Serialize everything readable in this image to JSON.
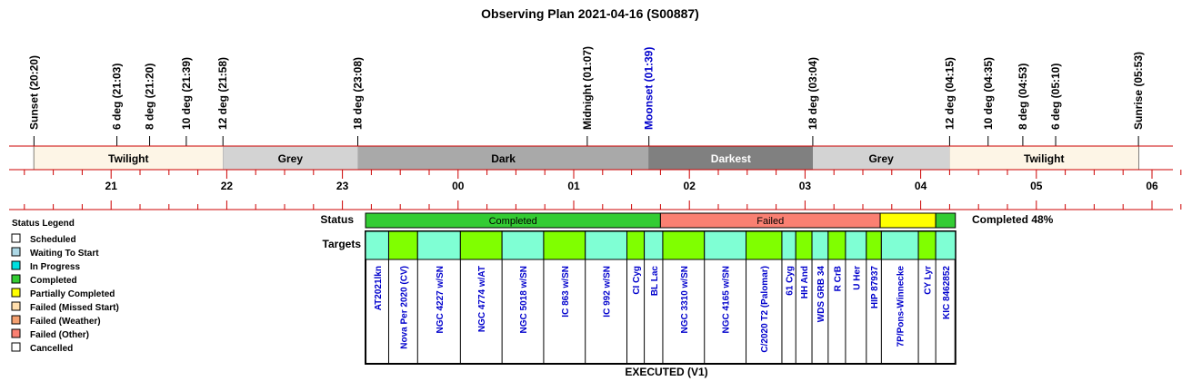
{
  "title": "Observing Plan 2021-04-16 (S00887)",
  "colors": {
    "twilight": "#fdf5e6",
    "grey": "#d3d3d3",
    "dark": "#a9a9a9",
    "darkest": "#808080",
    "red_line": "#cc0000",
    "moonset": "#0000cc",
    "target_text": "#0000cc",
    "completed": "#33cc33",
    "waiting": "#7fffd4",
    "green_target": "#80ff00",
    "failed": "#fa8072",
    "partial": "#ffff00",
    "in_progress": "#00e0e0"
  },
  "chart_data": {
    "type": "timeline",
    "x_unit": "hours from 20:00",
    "xlim": [
      -0.3,
      10.3
    ],
    "hour_ticks": [
      {
        "label": "21",
        "value": 1
      },
      {
        "label": "22",
        "value": 2
      },
      {
        "label": "23",
        "value": 3
      },
      {
        "label": "00",
        "value": 4
      },
      {
        "label": "01",
        "value": 5
      },
      {
        "label": "02",
        "value": 6
      },
      {
        "label": "03",
        "value": 7
      },
      {
        "label": "04",
        "value": 8
      },
      {
        "label": "05",
        "value": 9
      },
      {
        "label": "06",
        "value": 10
      }
    ],
    "events": [
      {
        "label": "Sunset (20:20)",
        "time": 0.333,
        "color": "#000000"
      },
      {
        "label": "6 deg (21:03)",
        "time": 1.05,
        "color": "#000000"
      },
      {
        "label": "8 deg (21:20)",
        "time": 1.333,
        "color": "#000000"
      },
      {
        "label": "10 deg (21:39)",
        "time": 1.65,
        "color": "#000000"
      },
      {
        "label": "12 deg (21:58)",
        "time": 1.967,
        "color": "#000000"
      },
      {
        "label": "18 deg (23:08)",
        "time": 3.133,
        "color": "#000000"
      },
      {
        "label": "Midnight (01:07)",
        "time": 5.117,
        "color": "#000000"
      },
      {
        "label": "Moonset (01:39)",
        "time": 5.65,
        "color": "#0000cc"
      },
      {
        "label": "18 deg (03:04)",
        "time": 7.067,
        "color": "#000000"
      },
      {
        "label": "12 deg (04:15)",
        "time": 8.25,
        "color": "#000000"
      },
      {
        "label": "10 deg (04:35)",
        "time": 8.583,
        "color": "#000000"
      },
      {
        "label": "8 deg (04:53)",
        "time": 8.883,
        "color": "#000000"
      },
      {
        "label": "6 deg (05:10)",
        "time": 9.167,
        "color": "#000000"
      },
      {
        "label": "Sunrise (05:53)",
        "time": 9.883,
        "color": "#000000"
      }
    ],
    "periods": [
      {
        "label": "Twilight",
        "start": 0.333,
        "end": 1.967,
        "color": "#fdf5e6",
        "text_color": "#000000"
      },
      {
        "label": "Grey",
        "start": 1.967,
        "end": 3.133,
        "color": "#d3d3d3",
        "text_color": "#000000"
      },
      {
        "label": "Dark",
        "start": 3.133,
        "end": 5.65,
        "color": "#a9a9a9",
        "text_color": "#000000"
      },
      {
        "label": "Darkest",
        "start": 5.65,
        "end": 7.067,
        "color": "#808080",
        "text_color": "#ffffff"
      },
      {
        "label": "Grey",
        "start": 7.067,
        "end": 8.25,
        "color": "#d3d3d3",
        "text_color": "#000000"
      },
      {
        "label": "Twilight",
        "start": 8.25,
        "end": 9.883,
        "color": "#fdf5e6",
        "text_color": "#000000"
      }
    ],
    "status_row_label": "Status",
    "targets_row_label": "Targets",
    "status_segments": [
      {
        "label": "Completed",
        "start": 3.2,
        "end": 5.75,
        "color": "#33cc33"
      },
      {
        "label": "Failed",
        "start": 5.75,
        "end": 7.65,
        "color": "#fa8072"
      },
      {
        "label": "",
        "start": 7.65,
        "end": 8.13,
        "color": "#ffff00"
      },
      {
        "label": "",
        "start": 8.13,
        "end": 8.3,
        "color": "#33cc33"
      }
    ],
    "completion_text": "Completed 48%",
    "targets": [
      {
        "name": "AT2021lkn",
        "start": 3.2,
        "end": 3.4,
        "color": "#7fffd4"
      },
      {
        "name": "Nova Per 2020 (CV)",
        "start": 3.4,
        "end": 3.65,
        "color": "#80ff00"
      },
      {
        "name": "NGC 4227 w/SN",
        "start": 3.65,
        "end": 4.02,
        "color": "#7fffd4"
      },
      {
        "name": "NGC 4774 w/AT",
        "start": 4.02,
        "end": 4.38,
        "color": "#80ff00"
      },
      {
        "name": "NGC 5018 w/SN",
        "start": 4.38,
        "end": 4.74,
        "color": "#7fffd4"
      },
      {
        "name": "IC 863 w/SN",
        "start": 4.74,
        "end": 5.1,
        "color": "#80ff00"
      },
      {
        "name": "IC 992 w/SN",
        "start": 5.1,
        "end": 5.46,
        "color": "#7fffd4"
      },
      {
        "name": "CI Cyg",
        "start": 5.46,
        "end": 5.61,
        "color": "#80ff00"
      },
      {
        "name": "BL Lac",
        "start": 5.61,
        "end": 5.77,
        "color": "#7fffd4"
      },
      {
        "name": "NGC 3310 w/SN",
        "start": 5.77,
        "end": 6.13,
        "color": "#80ff00"
      },
      {
        "name": "NGC 4165 w/SN",
        "start": 6.13,
        "end": 6.49,
        "color": "#7fffd4"
      },
      {
        "name": "C/2020 T2 (Palomar)",
        "start": 6.49,
        "end": 6.8,
        "color": "#80ff00"
      },
      {
        "name": "61 Cyg",
        "start": 6.8,
        "end": 6.92,
        "color": "#7fffd4"
      },
      {
        "name": "HH And",
        "start": 6.92,
        "end": 7.06,
        "color": "#80ff00"
      },
      {
        "name": "WDS GRB 34",
        "start": 7.06,
        "end": 7.2,
        "color": "#7fffd4"
      },
      {
        "name": "R CrB",
        "start": 7.2,
        "end": 7.35,
        "color": "#80ff00"
      },
      {
        "name": "U Her",
        "start": 7.35,
        "end": 7.53,
        "color": "#7fffd4"
      },
      {
        "name": "HIP 87937",
        "start": 7.53,
        "end": 7.66,
        "color": "#80ff00"
      },
      {
        "name": "7P/Pons-Winnecke",
        "start": 7.66,
        "end": 7.98,
        "color": "#7fffd4"
      },
      {
        "name": "CY Lyr",
        "start": 7.98,
        "end": 8.13,
        "color": "#80ff00"
      },
      {
        "name": "KIC 8462852",
        "start": 8.13,
        "end": 8.3,
        "color": "#7fffd4"
      }
    ],
    "footer": "EXECUTED (V1)"
  },
  "legend": {
    "title": "Status Legend",
    "items": [
      {
        "label": "Scheduled",
        "color": "#ffffff"
      },
      {
        "label": "Waiting To Start",
        "color": "#add8e6"
      },
      {
        "label": "In Progress",
        "color": "#00e0e0"
      },
      {
        "label": "Completed",
        "color": "#33cc33"
      },
      {
        "label": "Partially Completed",
        "color": "#ffff00"
      },
      {
        "label": "Failed (Missed Start)",
        "color": "#ffdead"
      },
      {
        "label": "Failed (Weather)",
        "color": "#f4a070"
      },
      {
        "label": "Failed (Other)",
        "color": "#fa8072"
      },
      {
        "label": "Cancelled",
        "color": "#ffffff"
      }
    ]
  }
}
